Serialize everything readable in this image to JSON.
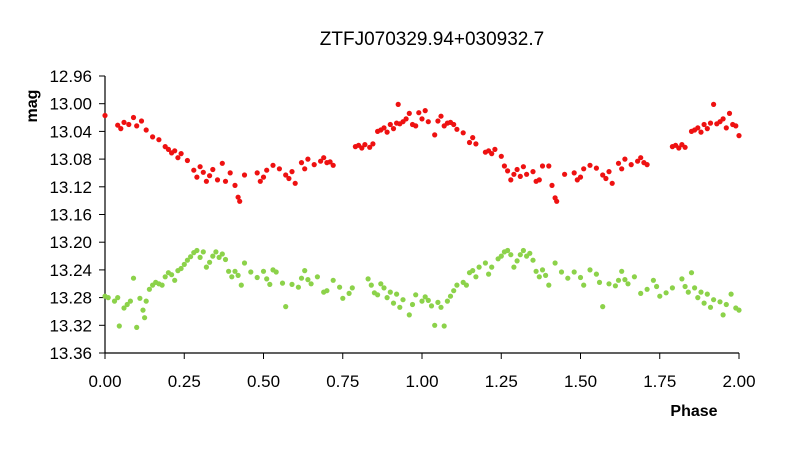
{
  "chart_data": {
    "type": "scatter",
    "title": "ZTFJ070329.94+030932.7",
    "xlabel": "Phase",
    "ylabel": "mag",
    "xlim": [
      0,
      2
    ],
    "ylim": [
      12.96,
      13.36
    ],
    "y_inverted": true,
    "grid": false,
    "x_ticks": [
      "0.00",
      "0.25",
      "0.50",
      "0.75",
      "1.00",
      "1.25",
      "1.50",
      "1.75",
      "2.00"
    ],
    "y_ticks": [
      "12.96",
      "13.00",
      "13.04",
      "13.08",
      "13.12",
      "13.16",
      "13.20",
      "13.24",
      "13.28",
      "13.32",
      "13.36"
    ],
    "series": [
      {
        "color": "#ee1111",
        "points": [
          [
            0.0,
            13.017
          ],
          [
            0.04,
            13.031
          ],
          [
            0.05,
            13.036
          ],
          [
            0.06,
            13.027
          ],
          [
            0.075,
            13.03
          ],
          [
            0.09,
            13.02
          ],
          [
            0.1,
            13.032
          ],
          [
            0.115,
            13.025
          ],
          [
            0.13,
            13.038
          ],
          [
            0.15,
            13.048
          ],
          [
            0.17,
            13.052
          ],
          [
            0.19,
            13.062
          ],
          [
            0.2,
            13.066
          ],
          [
            0.21,
            13.071
          ],
          [
            0.22,
            13.068
          ],
          [
            0.23,
            13.078
          ],
          [
            0.24,
            13.072
          ],
          [
            0.26,
            13.082
          ],
          [
            0.28,
            13.096
          ],
          [
            0.29,
            13.106
          ],
          [
            0.3,
            13.091
          ],
          [
            0.31,
            13.099
          ],
          [
            0.32,
            13.112
          ],
          [
            0.33,
            13.104
          ],
          [
            0.34,
            13.095
          ],
          [
            0.355,
            13.11
          ],
          [
            0.37,
            13.086
          ],
          [
            0.38,
            13.112
          ],
          [
            0.395,
            13.1
          ],
          [
            0.41,
            13.118
          ],
          [
            0.42,
            13.135
          ],
          [
            0.425,
            13.141
          ],
          [
            0.44,
            13.103
          ],
          [
            0.48,
            13.1
          ],
          [
            0.49,
            13.112
          ],
          [
            0.5,
            13.106
          ],
          [
            0.51,
            13.096
          ],
          [
            0.53,
            13.089
          ],
          [
            0.55,
            13.094
          ],
          [
            0.57,
            13.103
          ],
          [
            0.58,
            13.108
          ],
          [
            0.59,
            13.098
          ],
          [
            0.6,
            13.115
          ],
          [
            0.62,
            13.085
          ],
          [
            0.63,
            13.094
          ],
          [
            0.64,
            13.08
          ],
          [
            0.66,
            13.088
          ],
          [
            0.68,
            13.083
          ],
          [
            0.69,
            13.078
          ],
          [
            0.7,
            13.085
          ],
          [
            0.71,
            13.084
          ],
          [
            0.72,
            13.089
          ],
          [
            0.79,
            13.062
          ],
          [
            0.8,
            13.06
          ],
          [
            0.81,
            13.064
          ],
          [
            0.82,
            13.059
          ],
          [
            0.835,
            13.063
          ],
          [
            0.845,
            13.058
          ],
          [
            0.86,
            13.04
          ],
          [
            0.87,
            13.038
          ],
          [
            0.88,
            13.035
          ],
          [
            0.89,
            13.041
          ],
          [
            0.9,
            13.03
          ],
          [
            0.91,
            13.036
          ],
          [
            0.92,
            13.028
          ],
          [
            0.925,
            13.001
          ],
          [
            0.93,
            13.029
          ],
          [
            0.94,
            13.026
          ],
          [
            0.95,
            13.022
          ],
          [
            0.96,
            13.014
          ],
          [
            0.97,
            13.03
          ],
          [
            0.98,
            13.032
          ],
          [
            0.99,
            13.013
          ],
          [
            1.0,
            13.022
          ],
          [
            1.01,
            13.01
          ],
          [
            1.02,
            13.026
          ],
          [
            1.04,
            13.045
          ],
          [
            1.05,
            13.025
          ],
          [
            1.06,
            13.018
          ],
          [
            1.07,
            13.032
          ],
          [
            1.08,
            13.028
          ],
          [
            1.09,
            13.027
          ],
          [
            1.1,
            13.03
          ],
          [
            1.11,
            13.037
          ],
          [
            1.13,
            13.042
          ],
          [
            1.15,
            13.056
          ],
          [
            1.16,
            13.049
          ],
          [
            1.17,
            13.058
          ],
          [
            1.2,
            13.07
          ],
          [
            1.21,
            13.068
          ],
          [
            1.22,
            13.072
          ],
          [
            1.23,
            13.066
          ],
          [
            1.25,
            13.076
          ],
          [
            1.26,
            13.09
          ],
          [
            1.27,
            13.097
          ],
          [
            1.28,
            13.11
          ],
          [
            1.29,
            13.102
          ],
          [
            1.3,
            13.095
          ],
          [
            1.31,
            13.105
          ],
          [
            1.32,
            13.091
          ],
          [
            1.33,
            13.102
          ],
          [
            1.35,
            13.098
          ],
          [
            1.36,
            13.112
          ],
          [
            1.37,
            13.11
          ],
          [
            1.38,
            13.09
          ],
          [
            1.4,
            13.09
          ],
          [
            1.41,
            13.118
          ],
          [
            1.42,
            13.136
          ],
          [
            1.425,
            13.141
          ],
          [
            1.45,
            13.102
          ],
          [
            1.48,
            13.1
          ],
          [
            1.49,
            13.11
          ],
          [
            1.5,
            13.106
          ],
          [
            1.51,
            13.094
          ],
          [
            1.53,
            13.089
          ],
          [
            1.55,
            13.093
          ],
          [
            1.57,
            13.103
          ],
          [
            1.58,
            13.108
          ],
          [
            1.59,
            13.098
          ],
          [
            1.6,
            13.115
          ],
          [
            1.62,
            13.086
          ],
          [
            1.63,
            13.094
          ],
          [
            1.64,
            13.08
          ],
          [
            1.66,
            13.088
          ],
          [
            1.68,
            13.083
          ],
          [
            1.69,
            13.078
          ],
          [
            1.7,
            13.085
          ],
          [
            1.71,
            13.088
          ],
          [
            1.79,
            13.062
          ],
          [
            1.8,
            13.06
          ],
          [
            1.81,
            13.064
          ],
          [
            1.82,
            13.059
          ],
          [
            1.83,
            13.063
          ],
          [
            1.85,
            13.04
          ],
          [
            1.86,
            13.038
          ],
          [
            1.87,
            13.035
          ],
          [
            1.88,
            13.041
          ],
          [
            1.89,
            13.03
          ],
          [
            1.9,
            13.036
          ],
          [
            1.91,
            13.028
          ],
          [
            1.92,
            13.001
          ],
          [
            1.93,
            13.029
          ],
          [
            1.94,
            13.026
          ],
          [
            1.95,
            13.022
          ],
          [
            1.96,
            13.035
          ],
          [
            1.97,
            13.014
          ],
          [
            1.98,
            13.03
          ],
          [
            1.99,
            13.032
          ],
          [
            2.0,
            13.046
          ]
        ]
      },
      {
        "color": "#8cd24a",
        "points": [
          [
            0.0,
            13.278
          ],
          [
            0.01,
            13.28
          ],
          [
            0.03,
            13.285
          ],
          [
            0.04,
            13.28
          ],
          [
            0.045,
            13.321
          ],
          [
            0.06,
            13.295
          ],
          [
            0.07,
            13.29
          ],
          [
            0.08,
            13.285
          ],
          [
            0.09,
            13.252
          ],
          [
            0.1,
            13.323
          ],
          [
            0.11,
            13.281
          ],
          [
            0.12,
            13.298
          ],
          [
            0.125,
            13.309
          ],
          [
            0.13,
            13.285
          ],
          [
            0.14,
            13.268
          ],
          [
            0.15,
            13.262
          ],
          [
            0.16,
            13.258
          ],
          [
            0.17,
            13.26
          ],
          [
            0.18,
            13.262
          ],
          [
            0.19,
            13.25
          ],
          [
            0.2,
            13.244
          ],
          [
            0.21,
            13.247
          ],
          [
            0.22,
            13.255
          ],
          [
            0.23,
            13.241
          ],
          [
            0.24,
            13.238
          ],
          [
            0.25,
            13.232
          ],
          [
            0.26,
            13.226
          ],
          [
            0.27,
            13.221
          ],
          [
            0.28,
            13.215
          ],
          [
            0.29,
            13.212
          ],
          [
            0.3,
            13.222
          ],
          [
            0.31,
            13.214
          ],
          [
            0.32,
            13.236
          ],
          [
            0.33,
            13.229
          ],
          [
            0.34,
            13.22
          ],
          [
            0.35,
            13.214
          ],
          [
            0.36,
            13.222
          ],
          [
            0.37,
            13.217
          ],
          [
            0.38,
            13.225
          ],
          [
            0.39,
            13.242
          ],
          [
            0.4,
            13.25
          ],
          [
            0.41,
            13.242
          ],
          [
            0.42,
            13.248
          ],
          [
            0.43,
            13.262
          ],
          [
            0.44,
            13.23
          ],
          [
            0.46,
            13.243
          ],
          [
            0.48,
            13.251
          ],
          [
            0.5,
            13.242
          ],
          [
            0.51,
            13.253
          ],
          [
            0.52,
            13.261
          ],
          [
            0.53,
            13.24
          ],
          [
            0.54,
            13.243
          ],
          [
            0.56,
            13.259
          ],
          [
            0.57,
            13.293
          ],
          [
            0.59,
            13.261
          ],
          [
            0.61,
            13.265
          ],
          [
            0.62,
            13.252
          ],
          [
            0.63,
            13.241
          ],
          [
            0.64,
            13.254
          ],
          [
            0.65,
            13.26
          ],
          [
            0.67,
            13.25
          ],
          [
            0.69,
            13.272
          ],
          [
            0.7,
            13.27
          ],
          [
            0.72,
            13.255
          ],
          [
            0.74,
            13.265
          ],
          [
            0.75,
            13.281
          ],
          [
            0.77,
            13.274
          ],
          [
            0.78,
            13.266
          ],
          [
            0.83,
            13.253
          ],
          [
            0.84,
            13.262
          ],
          [
            0.85,
            13.273
          ],
          [
            0.86,
            13.276
          ],
          [
            0.87,
            13.26
          ],
          [
            0.88,
            13.266
          ],
          [
            0.89,
            13.28
          ],
          [
            0.9,
            13.272
          ],
          [
            0.91,
            13.288
          ],
          [
            0.92,
            13.275
          ],
          [
            0.93,
            13.294
          ],
          [
            0.94,
            13.283
          ],
          [
            0.96,
            13.305
          ],
          [
            0.97,
            13.29
          ],
          [
            0.98,
            13.276
          ],
          [
            1.0,
            13.285
          ],
          [
            1.01,
            13.279
          ],
          [
            1.02,
            13.284
          ],
          [
            1.03,
            13.292
          ],
          [
            1.04,
            13.32
          ],
          [
            1.05,
            13.287
          ],
          [
            1.06,
            13.294
          ],
          [
            1.07,
            13.321
          ],
          [
            1.08,
            13.285
          ],
          [
            1.09,
            13.278
          ],
          [
            1.1,
            13.27
          ],
          [
            1.11,
            13.262
          ],
          [
            1.13,
            13.258
          ],
          [
            1.14,
            13.262
          ],
          [
            1.15,
            13.244
          ],
          [
            1.16,
            13.241
          ],
          [
            1.17,
            13.25
          ],
          [
            1.18,
            13.236
          ],
          [
            1.2,
            13.23
          ],
          [
            1.21,
            13.246
          ],
          [
            1.22,
            13.236
          ],
          [
            1.24,
            13.224
          ],
          [
            1.25,
            13.22
          ],
          [
            1.26,
            13.214
          ],
          [
            1.27,
            13.212
          ],
          [
            1.28,
            13.218
          ],
          [
            1.29,
            13.236
          ],
          [
            1.3,
            13.227
          ],
          [
            1.31,
            13.218
          ],
          [
            1.32,
            13.212
          ],
          [
            1.33,
            13.22
          ],
          [
            1.34,
            13.216
          ],
          [
            1.35,
            13.226
          ],
          [
            1.36,
            13.242
          ],
          [
            1.37,
            13.25
          ],
          [
            1.38,
            13.24
          ],
          [
            1.39,
            13.248
          ],
          [
            1.4,
            13.262
          ],
          [
            1.42,
            13.23
          ],
          [
            1.44,
            13.243
          ],
          [
            1.46,
            13.252
          ],
          [
            1.48,
            13.243
          ],
          [
            1.5,
            13.251
          ],
          [
            1.51,
            13.262
          ],
          [
            1.53,
            13.24
          ],
          [
            1.55,
            13.246
          ],
          [
            1.56,
            13.258
          ],
          [
            1.57,
            13.293
          ],
          [
            1.59,
            13.26
          ],
          [
            1.61,
            13.263
          ],
          [
            1.62,
            13.255
          ],
          [
            1.63,
            13.242
          ],
          [
            1.64,
            13.254
          ],
          [
            1.65,
            13.26
          ],
          [
            1.67,
            13.25
          ],
          [
            1.69,
            13.274
          ],
          [
            1.71,
            13.268
          ],
          [
            1.73,
            13.255
          ],
          [
            1.74,
            13.264
          ],
          [
            1.75,
            13.278
          ],
          [
            1.77,
            13.273
          ],
          [
            1.79,
            13.266
          ],
          [
            1.82,
            13.253
          ],
          [
            1.83,
            13.264
          ],
          [
            1.84,
            13.272
          ],
          [
            1.85,
            13.244
          ],
          [
            1.86,
            13.266
          ],
          [
            1.87,
            13.28
          ],
          [
            1.88,
            13.272
          ],
          [
            1.89,
            13.288
          ],
          [
            1.9,
            13.275
          ],
          [
            1.91,
            13.294
          ],
          [
            1.92,
            13.283
          ],
          [
            1.94,
            13.286
          ],
          [
            1.95,
            13.305
          ],
          [
            1.96,
            13.29
          ],
          [
            1.975,
            13.275
          ],
          [
            1.99,
            13.295
          ],
          [
            2.0,
            13.298
          ]
        ]
      }
    ]
  }
}
